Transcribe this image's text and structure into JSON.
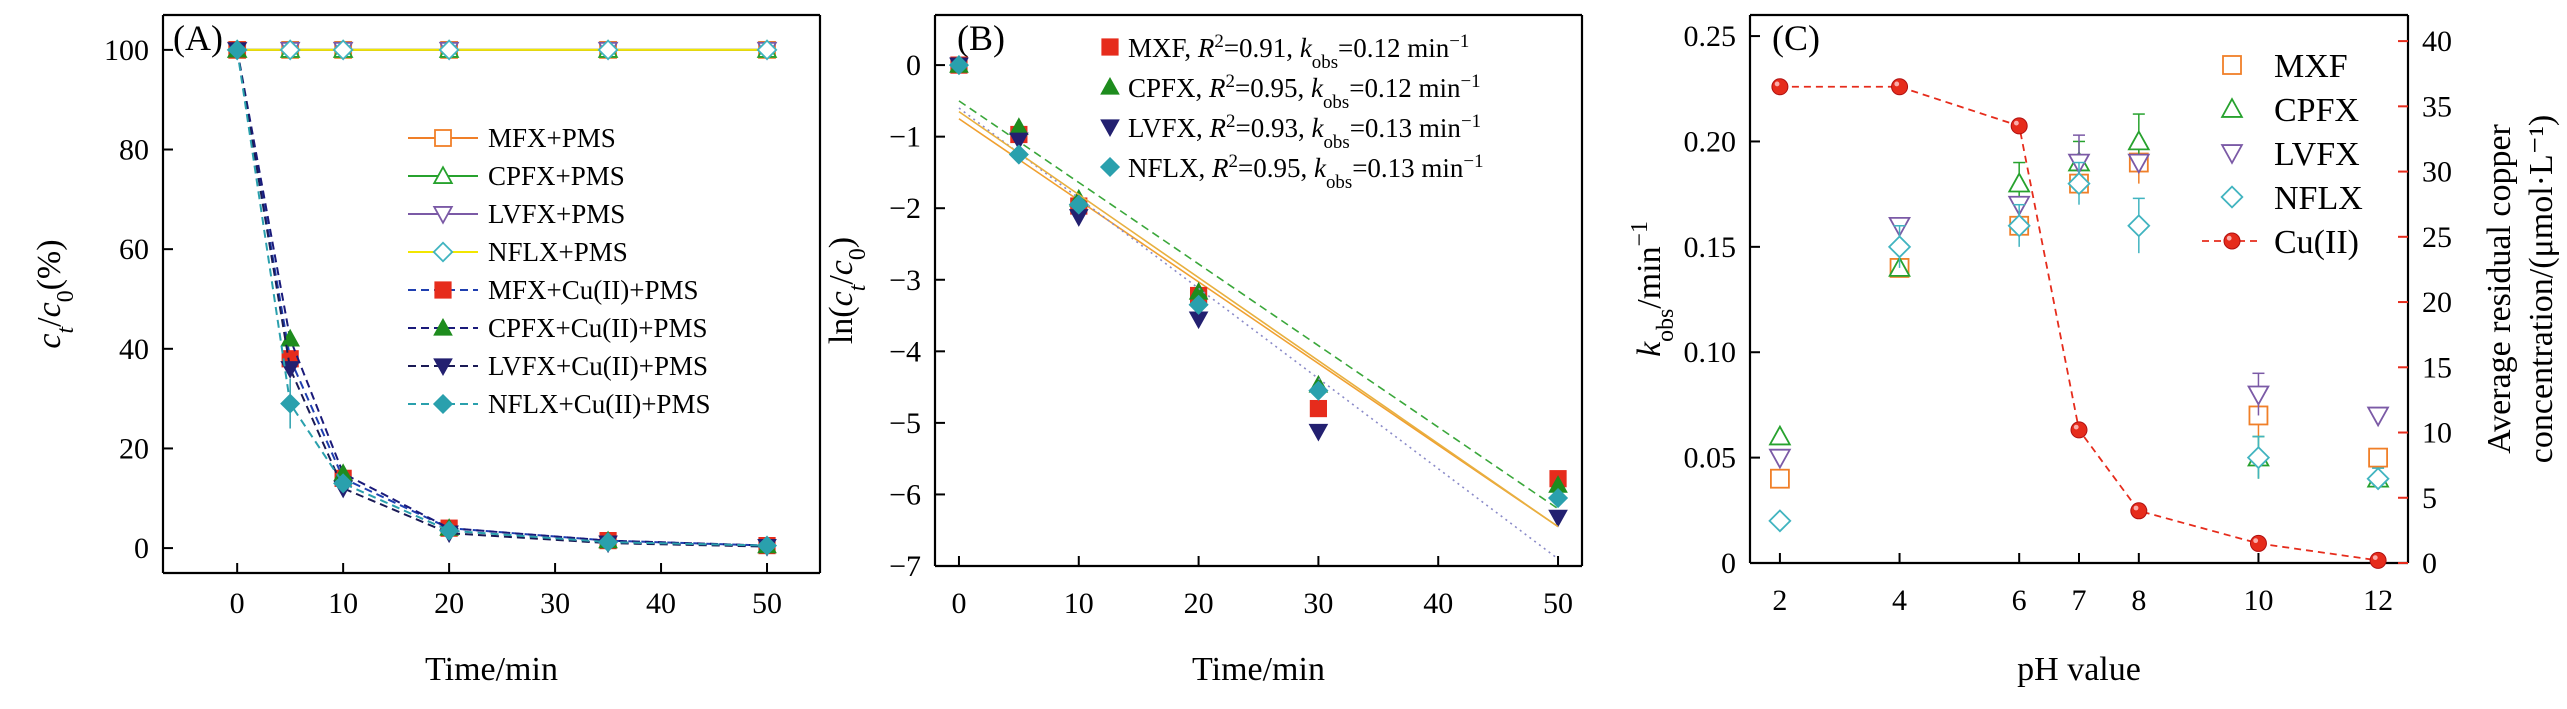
{
  "chart_data": [
    {
      "panel": "(A)",
      "type": "line",
      "xlabel": "Time/min",
      "ylabel": "c_t/c_0(%)",
      "xlim": [
        -7,
        55
      ],
      "ylim": [
        -5,
        107
      ],
      "xticks": [
        0,
        10,
        20,
        30,
        40,
        50
      ],
      "yticks": [
        0,
        20,
        40,
        60,
        80,
        100
      ],
      "series": [
        {
          "name": "MFX+PMS",
          "color": "#f07f28",
          "marker": "square-open",
          "dash": "solid",
          "x": [
            0,
            5,
            10,
            20,
            35,
            50
          ],
          "y": [
            100,
            100,
            100,
            100,
            100,
            100
          ]
        },
        {
          "name": "CPFX+PMS",
          "color": "#27a22e",
          "marker": "triangle-open",
          "dash": "solid",
          "x": [
            0,
            5,
            10,
            20,
            35,
            50
          ],
          "y": [
            100,
            100,
            100,
            100,
            100,
            100
          ]
        },
        {
          "name": "LVFX+PMS",
          "color": "#7b5aa6",
          "marker": "tridown-open",
          "dash": "solid",
          "x": [
            0,
            5,
            10,
            20,
            35,
            50
          ],
          "y": [
            100,
            100,
            100,
            100,
            100,
            100
          ]
        },
        {
          "name": "NFLX+PMS",
          "color": "#f2e600",
          "marker": "diamond-open",
          "markerColor": "#41b4c0",
          "dash": "solid",
          "x": [
            0,
            5,
            10,
            20,
            35,
            50
          ],
          "y": [
            100,
            100,
            100,
            100,
            100,
            100
          ]
        },
        {
          "name": "MFX+Cu(II)+PMS",
          "color": "#1f3fb0",
          "marker": "square",
          "markerColor": "#e62c1c",
          "dash": "dashed",
          "x": [
            0,
            5,
            10,
            20,
            35,
            50
          ],
          "y": [
            100,
            38,
            14,
            4,
            1.5,
            0.5
          ]
        },
        {
          "name": "CPFX+Cu(II)+PMS",
          "color": "#1a1a7a",
          "marker": "triangle",
          "markerColor": "#1e8c1e",
          "dash": "dashed",
          "x": [
            0,
            5,
            10,
            20,
            35,
            50
          ],
          "y": [
            100,
            42,
            15,
            4,
            1.5,
            0.5
          ]
        },
        {
          "name": "LVFX+Cu(II)+PMS",
          "color": "#1a1a55",
          "marker": "tridown",
          "markerColor": "#232070",
          "dash": "dashed",
          "x": [
            0,
            5,
            10,
            20,
            35,
            50
          ],
          "y": [
            100,
            36,
            12,
            3,
            1,
            0.3
          ]
        },
        {
          "name": "NFLX+Cu(II)+PMS",
          "color": "#2aa0ad",
          "marker": "diamond",
          "markerColor": "#2aa0ad",
          "dash": "dashed",
          "x": [
            0,
            5,
            10,
            20,
            35,
            50
          ],
          "y": [
            100,
            29,
            13,
            3.5,
            1.2,
            0.5
          ]
        }
      ]
    },
    {
      "panel": "(B)",
      "type": "scatter",
      "xlabel": "Time/min",
      "ylabel": "ln(c_t/c_0)",
      "xlim": [
        -2,
        52
      ],
      "ylim": [
        -7,
        0.7
      ],
      "xticks": [
        0,
        10,
        20,
        30,
        40,
        50
      ],
      "yticks": [
        0,
        -1,
        -2,
        -3,
        -4,
        -5,
        -6,
        -7
      ],
      "series": [
        {
          "name": "MXF",
          "r2": "0.91",
          "k": "0.12",
          "color": "#e62c1c",
          "marker": "square",
          "lineColor": "#f0a030",
          "lineDash": "solid",
          "x": [
            0,
            5,
            10,
            20,
            30,
            50
          ],
          "y": [
            0,
            -0.97,
            -1.97,
            -3.22,
            -4.8,
            -5.78
          ],
          "fit": {
            "x": [
              0,
              50
            ],
            "y": [
              -0.75,
              -6.45
            ]
          }
        },
        {
          "name": "CPFX",
          "r2": "0.95",
          "k": "0.12",
          "color": "#1e8c1e",
          "marker": "triangle",
          "lineColor": "#3aa73a",
          "lineDash": "dashed",
          "x": [
            0,
            5,
            10,
            20,
            30,
            50
          ],
          "y": [
            0,
            -0.87,
            -1.87,
            -3.17,
            -4.47,
            -5.87
          ],
          "fit": {
            "x": [
              0,
              50
            ],
            "y": [
              -0.5,
              -6.2
            ]
          }
        },
        {
          "name": "LVFX",
          "r2": "0.93",
          "k": "0.13",
          "color": "#232070",
          "marker": "tridown",
          "lineColor": "#8a8ac8",
          "lineDash": "dotted",
          "x": [
            0,
            5,
            10,
            20,
            30,
            50
          ],
          "y": [
            0,
            -1.05,
            -2.12,
            -3.55,
            -5.12,
            -6.32
          ],
          "fit": {
            "x": [
              0,
              50
            ],
            "y": [
              -0.6,
              -6.9
            ]
          }
        },
        {
          "name": "NFLX",
          "r2": "0.95",
          "k": "0.13",
          "color": "#2aa0ad",
          "marker": "diamond",
          "lineColor": "#e8b040",
          "lineDash": "solid",
          "x": [
            0,
            5,
            10,
            20,
            30,
            50
          ],
          "y": [
            0,
            -1.25,
            -1.95,
            -3.35,
            -4.55,
            -6.05
          ],
          "fit": {
            "x": [
              0,
              50
            ],
            "y": [
              -0.65,
              -6.45
            ]
          }
        }
      ]
    },
    {
      "panel": "(C)",
      "type": "scatter",
      "xlabel": "pH value",
      "ylabel": "k_obs/min^-1",
      "y2label_line1": "Average residual copper",
      "y2label_line2": "concentration/(μmol·L⁻¹)",
      "xlim": [
        1.5,
        12.5
      ],
      "ylim": [
        0,
        0.26
      ],
      "y2lim": [
        0,
        42
      ],
      "xticks": [
        2,
        4,
        6,
        7,
        8,
        10,
        12
      ],
      "yticks": [
        "0",
        "0.05",
        "0.10",
        "0.15",
        "0.20",
        "0.25"
      ],
      "y2ticks": [
        0,
        5,
        10,
        15,
        20,
        25,
        30,
        35,
        40
      ],
      "series": [
        {
          "name": "MXF",
          "color": "#f07f28",
          "marker": "square-open",
          "x": [
            2,
            4,
            6,
            7,
            8,
            10,
            12
          ],
          "y": [
            0.04,
            0.14,
            0.16,
            0.18,
            0.19,
            0.07,
            0.05
          ],
          "err": [
            0,
            0,
            0,
            0,
            0.01,
            0.01,
            0
          ]
        },
        {
          "name": "CPFX",
          "color": "#27a22e",
          "marker": "triangle-open",
          "x": [
            2,
            4,
            6,
            7,
            8,
            10,
            12
          ],
          "y": [
            0.06,
            0.14,
            0.18,
            0.19,
            0.2,
            0.05,
            0.04
          ],
          "err": [
            0,
            0,
            0.01,
            0.01,
            0.013,
            0.01,
            0
          ]
        },
        {
          "name": "LVFX",
          "color": "#7b5aa6",
          "marker": "tridown-open",
          "x": [
            2,
            4,
            6,
            7,
            8,
            10,
            12
          ],
          "y": [
            0.05,
            0.16,
            0.17,
            0.19,
            0.19,
            0.08,
            0.07
          ],
          "err": [
            0,
            0,
            0,
            0.013,
            0,
            0.01,
            0
          ]
        },
        {
          "name": "NFLX",
          "color": "#41b4c0",
          "marker": "diamond-open",
          "x": [
            2,
            4,
            6,
            7,
            8,
            10,
            12
          ],
          "y": [
            0.02,
            0.15,
            0.16,
            0.18,
            0.16,
            0.05,
            0.04
          ],
          "err": [
            0,
            0.01,
            0.01,
            0.01,
            0.013,
            0.01,
            0.005
          ]
        },
        {
          "name": "Cu(II)",
          "color": "#e62c1c",
          "marker": "circle",
          "axis": "right",
          "dash": "dashed",
          "x": [
            2,
            4,
            6,
            7,
            8,
            10,
            12
          ],
          "y": [
            36.5,
            36.5,
            33.5,
            10.2,
            4,
            1.5,
            0.2
          ]
        }
      ]
    }
  ],
  "colors": {
    "right_axis": "#e62c1c",
    "axis": "#000000"
  }
}
